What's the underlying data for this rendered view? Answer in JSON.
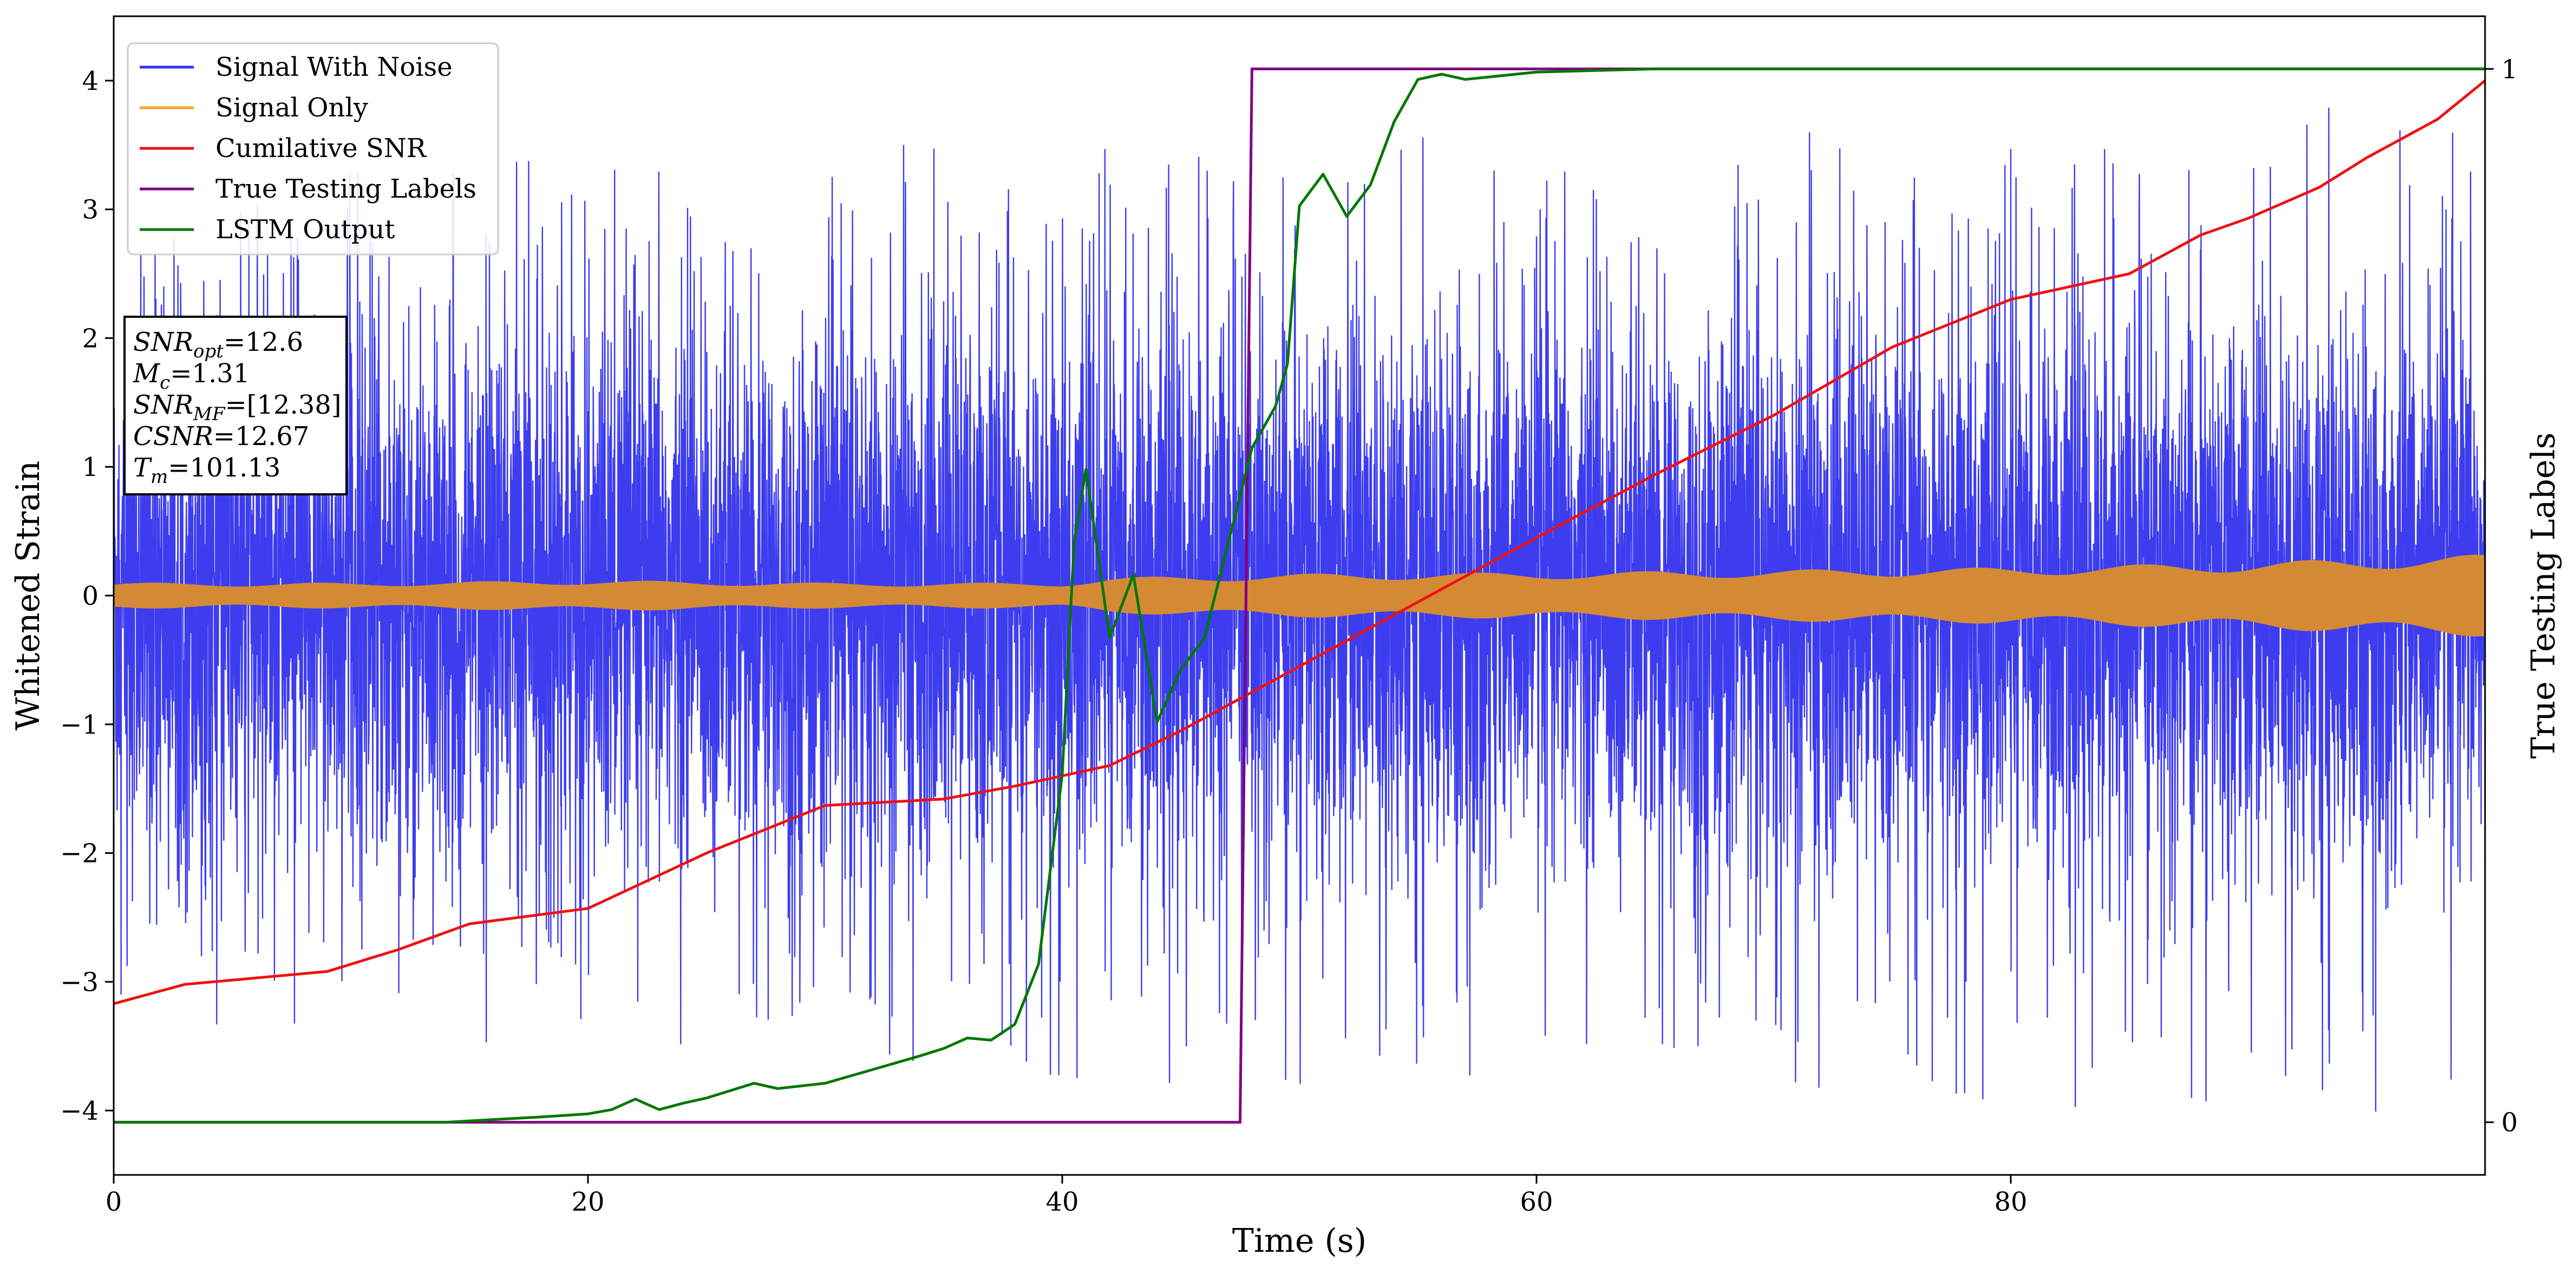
{
  "chart_data": {
    "type": "line",
    "xlabel": "Time (s)",
    "ylabel": "Whitened Strain",
    "y2label": "True Testing Labels",
    "xlim": [
      0,
      100
    ],
    "ylim": [
      -4.5,
      4.5
    ],
    "y2lim": [
      -0.05,
      1.05
    ],
    "x_ticks": [
      0,
      20,
      40,
      60,
      80
    ],
    "y_ticks": [
      -4,
      -3,
      -2,
      -1,
      0,
      1,
      2,
      3,
      4
    ],
    "y2_ticks": [
      0,
      1
    ],
    "grid": false,
    "legend_position": "top-left",
    "legend": [
      {
        "name": "Signal With Noise",
        "color": "#3333ee"
      },
      {
        "name": "Signal Only",
        "color": "#f5a623"
      },
      {
        "name": "Cumilative SNR",
        "color": "#ee1111"
      },
      {
        "name": "True Testing Labels",
        "color": "#800080"
      },
      {
        "name": "LSTM Output",
        "color": "#007700"
      }
    ],
    "annotations": [
      {
        "base": "SNR",
        "sub": "opt",
        "value": "=12.6"
      },
      {
        "base": "M",
        "sub": "c",
        "value": "=1.31"
      },
      {
        "base": "SNR",
        "sub": "MF",
        "value": "=[12.38]"
      },
      {
        "base": "CSNR",
        "sub": "",
        "value": "=12.67"
      },
      {
        "base": "T",
        "sub": "m",
        "value": "=101.13"
      }
    ],
    "series": [
      {
        "name": "Signal With Noise",
        "color": "#3333ee",
        "envelope_x": [
          0,
          10,
          20,
          30,
          40,
          50,
          60,
          70,
          80,
          90,
          100
        ],
        "upper": [
          2.6,
          3.3,
          3.4,
          3.5,
          3.5,
          3.7,
          3.6,
          3.6,
          3.6,
          3.8,
          4.05
        ],
        "lower": [
          -3.4,
          -3.3,
          -3.6,
          -3.5,
          -3.9,
          -3.8,
          -3.7,
          -3.8,
          -4.1,
          -3.9,
          -4.1
        ]
      },
      {
        "name": "Signal Only",
        "color": "#f5a623",
        "x": [
          0,
          10,
          20,
          30,
          40,
          42,
          50,
          60,
          70,
          80,
          90,
          100
        ],
        "amplitude": [
          0.1,
          0.1,
          0.12,
          0.1,
          0.1,
          0.14,
          0.17,
          0.18,
          0.2,
          0.22,
          0.26,
          0.32
        ]
      },
      {
        "name": "Cumilative SNR",
        "color": "#ee1111",
        "x": [
          0,
          3,
          6,
          9,
          12,
          15,
          20,
          25,
          30,
          35,
          38,
          40,
          42,
          45,
          50,
          55,
          60,
          65,
          70,
          75,
          80,
          83,
          85,
          88,
          90,
          93,
          95,
          98,
          100
        ],
        "y": [
          -3.17,
          -3.02,
          -2.97,
          -2.92,
          -2.75,
          -2.55,
          -2.43,
          -2.0,
          -1.63,
          -1.58,
          -1.48,
          -1.4,
          -1.32,
          -1.05,
          -0.55,
          -0.05,
          0.45,
          0.94,
          1.4,
          1.93,
          2.3,
          2.42,
          2.5,
          2.8,
          2.93,
          3.17,
          3.4,
          3.7,
          4.0
        ]
      },
      {
        "name": "True Testing Labels",
        "color": "#800080",
        "axis": "right",
        "x": [
          0,
          47.5,
          48.0,
          100
        ],
        "y": [
          0,
          0,
          1,
          1
        ]
      },
      {
        "name": "LSTM Output",
        "color": "#007700",
        "axis": "right",
        "x": [
          0,
          14,
          18,
          20,
          21,
          22,
          23,
          24,
          25,
          27,
          28,
          30,
          32,
          34,
          35,
          36,
          37,
          38,
          39,
          40,
          40.5,
          41,
          42,
          43,
          44,
          45,
          46,
          47,
          48,
          49,
          49.5,
          50,
          51,
          52,
          53,
          54,
          55,
          56,
          57,
          60,
          65,
          100
        ],
        "y": [
          0,
          0,
          0.005,
          0.008,
          0.012,
          0.022,
          0.012,
          0.018,
          0.023,
          0.037,
          0.032,
          0.037,
          0.05,
          0.063,
          0.07,
          0.08,
          0.078,
          0.093,
          0.15,
          0.33,
          0.55,
          0.62,
          0.46,
          0.52,
          0.38,
          0.43,
          0.46,
          0.55,
          0.64,
          0.68,
          0.72,
          0.87,
          0.9,
          0.86,
          0.89,
          0.95,
          0.99,
          0.995,
          0.99,
          0.997,
          1.0,
          1.0
        ]
      }
    ]
  }
}
